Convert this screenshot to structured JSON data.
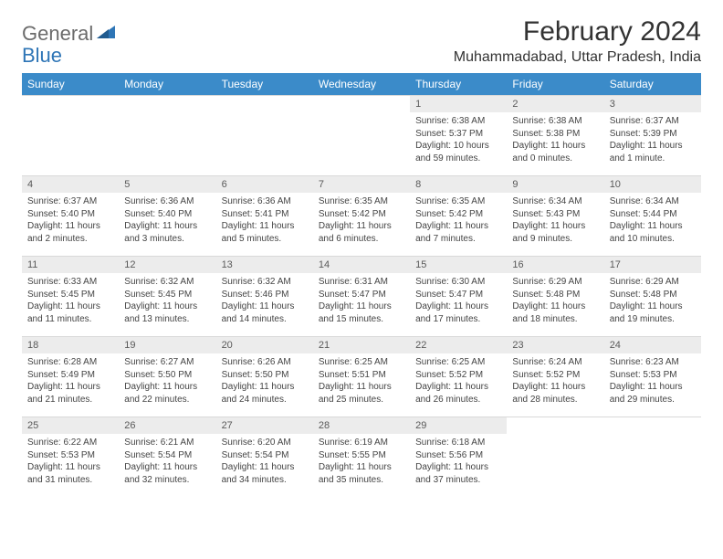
{
  "logo": {
    "word1": "General",
    "word2": "Blue"
  },
  "title": "February 2024",
  "location": "Muhammadabad, Uttar Pradesh, India",
  "colors": {
    "header_bg": "#3b8bc9",
    "header_text": "#ffffff",
    "daynum_bg": "#ececec",
    "daynum_text": "#595959",
    "body_text": "#444444",
    "logo_gray": "#6b6b6b",
    "logo_blue": "#2e75b6"
  },
  "weekdays": [
    "Sunday",
    "Monday",
    "Tuesday",
    "Wednesday",
    "Thursday",
    "Friday",
    "Saturday"
  ],
  "weeks": [
    [
      null,
      null,
      null,
      null,
      {
        "n": "1",
        "sr": "6:38 AM",
        "ss": "5:37 PM",
        "dl": "10 hours and 59 minutes."
      },
      {
        "n": "2",
        "sr": "6:38 AM",
        "ss": "5:38 PM",
        "dl": "11 hours and 0 minutes."
      },
      {
        "n": "3",
        "sr": "6:37 AM",
        "ss": "5:39 PM",
        "dl": "11 hours and 1 minute."
      }
    ],
    [
      {
        "n": "4",
        "sr": "6:37 AM",
        "ss": "5:40 PM",
        "dl": "11 hours and 2 minutes."
      },
      {
        "n": "5",
        "sr": "6:36 AM",
        "ss": "5:40 PM",
        "dl": "11 hours and 3 minutes."
      },
      {
        "n": "6",
        "sr": "6:36 AM",
        "ss": "5:41 PM",
        "dl": "11 hours and 5 minutes."
      },
      {
        "n": "7",
        "sr": "6:35 AM",
        "ss": "5:42 PM",
        "dl": "11 hours and 6 minutes."
      },
      {
        "n": "8",
        "sr": "6:35 AM",
        "ss": "5:42 PM",
        "dl": "11 hours and 7 minutes."
      },
      {
        "n": "9",
        "sr": "6:34 AM",
        "ss": "5:43 PM",
        "dl": "11 hours and 9 minutes."
      },
      {
        "n": "10",
        "sr": "6:34 AM",
        "ss": "5:44 PM",
        "dl": "11 hours and 10 minutes."
      }
    ],
    [
      {
        "n": "11",
        "sr": "6:33 AM",
        "ss": "5:45 PM",
        "dl": "11 hours and 11 minutes."
      },
      {
        "n": "12",
        "sr": "6:32 AM",
        "ss": "5:45 PM",
        "dl": "11 hours and 13 minutes."
      },
      {
        "n": "13",
        "sr": "6:32 AM",
        "ss": "5:46 PM",
        "dl": "11 hours and 14 minutes."
      },
      {
        "n": "14",
        "sr": "6:31 AM",
        "ss": "5:47 PM",
        "dl": "11 hours and 15 minutes."
      },
      {
        "n": "15",
        "sr": "6:30 AM",
        "ss": "5:47 PM",
        "dl": "11 hours and 17 minutes."
      },
      {
        "n": "16",
        "sr": "6:29 AM",
        "ss": "5:48 PM",
        "dl": "11 hours and 18 minutes."
      },
      {
        "n": "17",
        "sr": "6:29 AM",
        "ss": "5:48 PM",
        "dl": "11 hours and 19 minutes."
      }
    ],
    [
      {
        "n": "18",
        "sr": "6:28 AM",
        "ss": "5:49 PM",
        "dl": "11 hours and 21 minutes."
      },
      {
        "n": "19",
        "sr": "6:27 AM",
        "ss": "5:50 PM",
        "dl": "11 hours and 22 minutes."
      },
      {
        "n": "20",
        "sr": "6:26 AM",
        "ss": "5:50 PM",
        "dl": "11 hours and 24 minutes."
      },
      {
        "n": "21",
        "sr": "6:25 AM",
        "ss": "5:51 PM",
        "dl": "11 hours and 25 minutes."
      },
      {
        "n": "22",
        "sr": "6:25 AM",
        "ss": "5:52 PM",
        "dl": "11 hours and 26 minutes."
      },
      {
        "n": "23",
        "sr": "6:24 AM",
        "ss": "5:52 PM",
        "dl": "11 hours and 28 minutes."
      },
      {
        "n": "24",
        "sr": "6:23 AM",
        "ss": "5:53 PM",
        "dl": "11 hours and 29 minutes."
      }
    ],
    [
      {
        "n": "25",
        "sr": "6:22 AM",
        "ss": "5:53 PM",
        "dl": "11 hours and 31 minutes."
      },
      {
        "n": "26",
        "sr": "6:21 AM",
        "ss": "5:54 PM",
        "dl": "11 hours and 32 minutes."
      },
      {
        "n": "27",
        "sr": "6:20 AM",
        "ss": "5:54 PM",
        "dl": "11 hours and 34 minutes."
      },
      {
        "n": "28",
        "sr": "6:19 AM",
        "ss": "5:55 PM",
        "dl": "11 hours and 35 minutes."
      },
      {
        "n": "29",
        "sr": "6:18 AM",
        "ss": "5:56 PM",
        "dl": "11 hours and 37 minutes."
      },
      null,
      null
    ]
  ]
}
